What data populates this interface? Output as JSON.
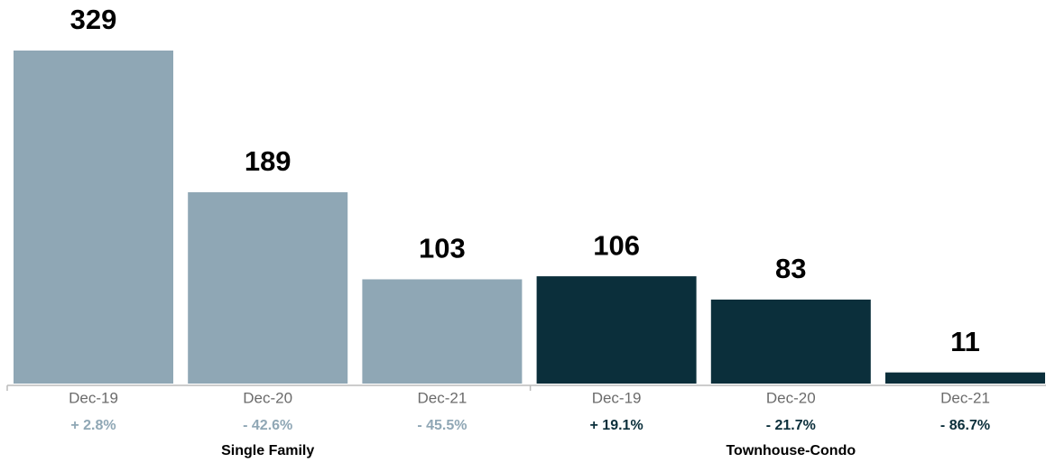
{
  "chart_data": {
    "type": "bar",
    "categories": [
      "Dec-19",
      "Dec-20",
      "Dec-21"
    ],
    "series": [
      {
        "name": "Single Family",
        "color": "#8fa7b5",
        "values": [
          329,
          189,
          103
        ],
        "change_labels": [
          "+ 2.8%",
          "- 42.6%",
          "- 45.5%"
        ]
      },
      {
        "name": "Townhouse-Condo",
        "color": "#0b2f3b",
        "values": [
          106,
          83,
          11
        ],
        "change_labels": [
          "+ 19.1%",
          "- 21.7%",
          "- 86.7%"
        ]
      }
    ]
  }
}
